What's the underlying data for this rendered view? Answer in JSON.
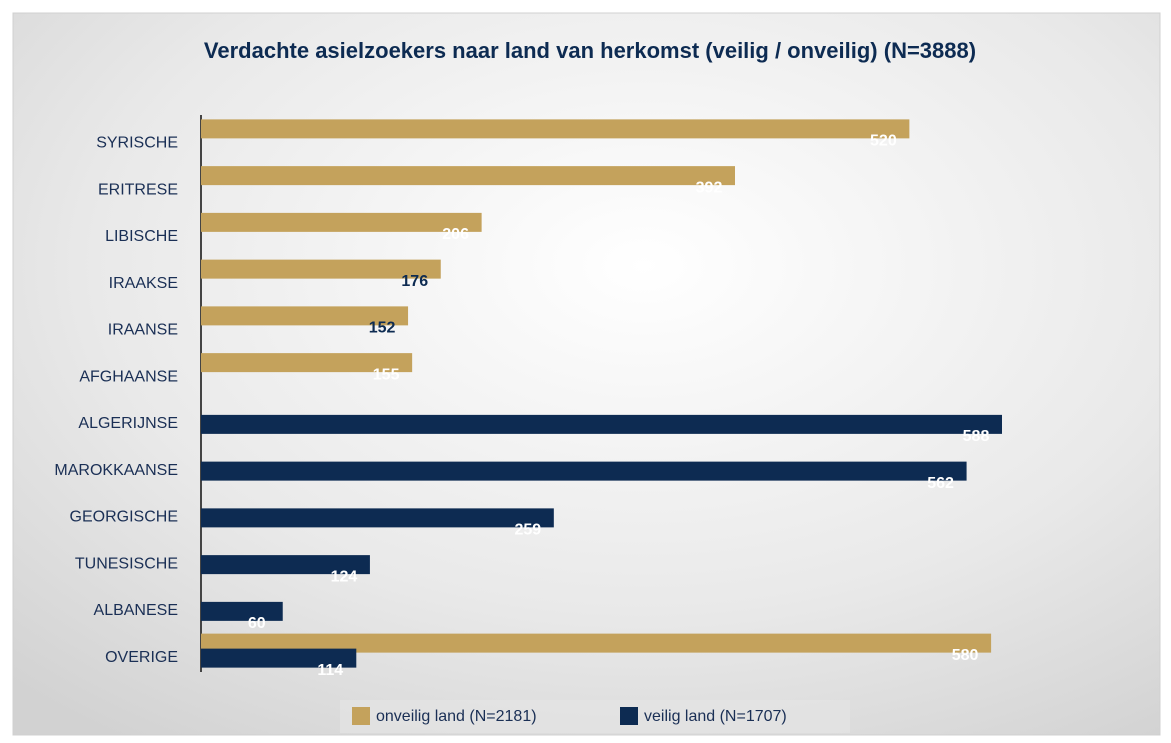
{
  "chart_data": {
    "type": "bar",
    "orientation": "horizontal",
    "title": "Verdachte asielzoekers naar land van herkomst (veilig / onveilig) (N=3888)",
    "categories": [
      "SYRISCHE",
      "ERITRESE",
      "LIBISCHE",
      "IRAAKSE",
      "IRAANSE",
      "AFGHAANSE",
      "ALGERIJNSE",
      "MAROKKAANSE",
      "GEORGISCHE",
      "TUNESISCHE",
      "ALBANESE",
      "OVERIGE"
    ],
    "series": [
      {
        "name": "onveilig land (N=2181)",
        "color": "#c4a25c",
        "label_colors": [
          "#ffffff",
          "#ffffff",
          "#ffffff",
          "#0d2b52",
          "#0d2b52",
          "#ffffff",
          null,
          null,
          null,
          null,
          null,
          "#ffffff"
        ],
        "values": [
          520,
          392,
          206,
          176,
          152,
          155,
          null,
          null,
          null,
          null,
          null,
          580
        ]
      },
      {
        "name": "veilig land (N=1707)",
        "color": "#0d2b52",
        "label_colors": [
          null,
          null,
          null,
          null,
          null,
          null,
          "#ffffff",
          "#ffffff",
          "#ffffff",
          "#ffffff",
          "#ffffff",
          "#ffffff"
        ],
        "values": [
          null,
          null,
          null,
          null,
          null,
          null,
          588,
          562,
          259,
          124,
          60,
          114
        ]
      }
    ],
    "legend": "bottom"
  }
}
